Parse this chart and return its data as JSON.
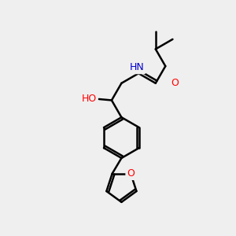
{
  "background_color": "#efefef",
  "bond_color": "#000000",
  "bond_width": 1.8,
  "atom_colors": {
    "O": "#ff0000",
    "N": "#0000cd",
    "H_N": "#008080",
    "H_O": "#008080"
  },
  "figsize": [
    3.0,
    3.0
  ],
  "dpi": 100
}
